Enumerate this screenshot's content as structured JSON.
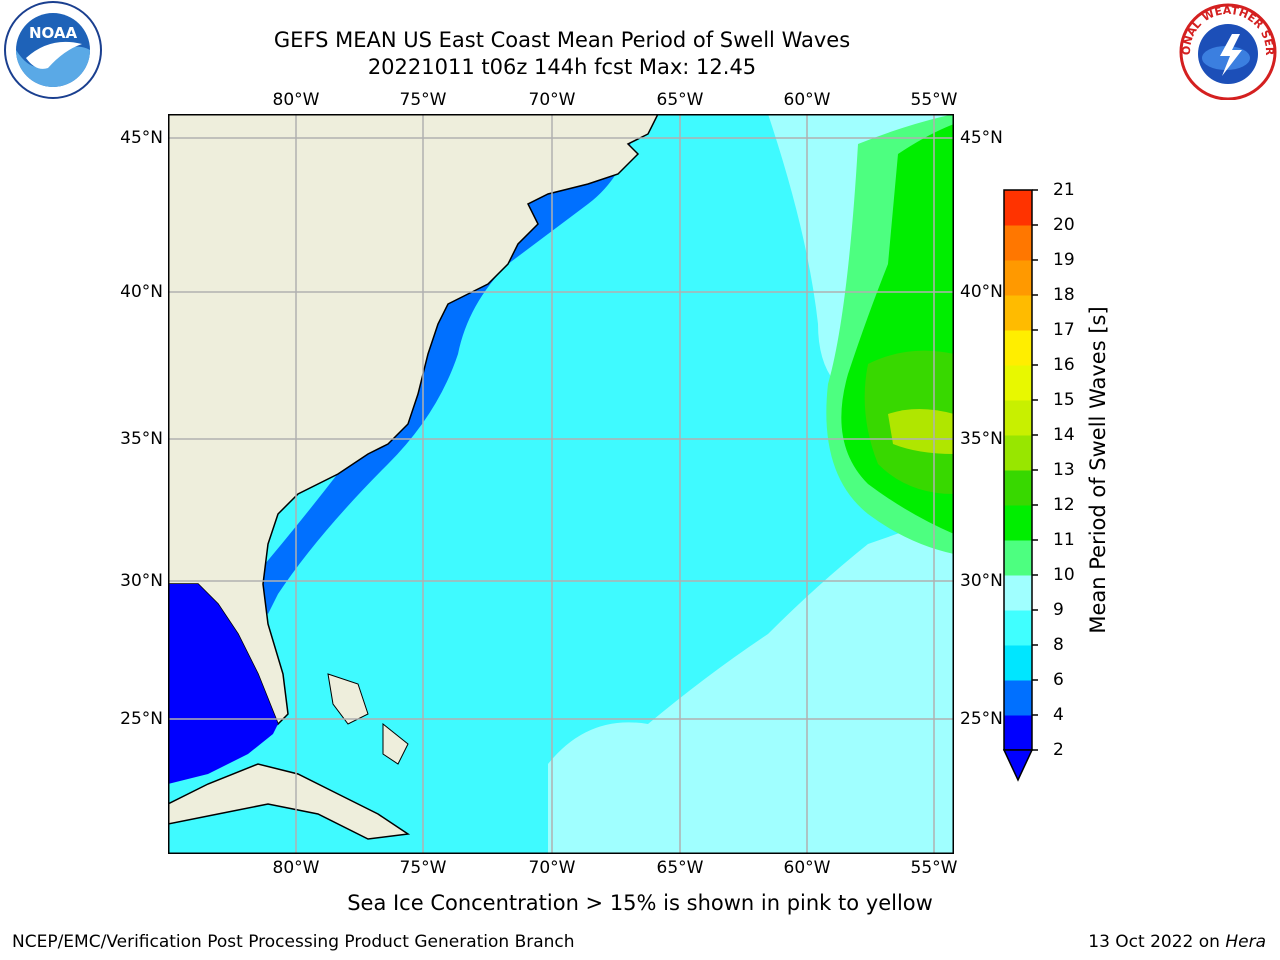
{
  "title": {
    "line1": "GEFS MEAN US East Coast Mean Period of Swell Waves",
    "line2": "20221011 t06z 144h fcst   Max: 12.45"
  },
  "logos": {
    "left": {
      "name": "noaa-logo",
      "text": "NOAA"
    },
    "right": {
      "name": "nws-logo",
      "text": "NATIONAL WEATHER SERVICE"
    }
  },
  "map": {
    "x_ticks": [
      "80°W",
      "75°W",
      "70°W",
      "65°W",
      "60°W",
      "55°W"
    ],
    "y_ticks": [
      "45°N",
      "40°N",
      "35°N",
      "30°N",
      "25°N"
    ],
    "land_color": "#eeeedc",
    "grid_color": "#b0b0b0"
  },
  "colorbar": {
    "title": "Mean Period of Swell Waves [s]",
    "labels": [
      "2",
      "4",
      "6",
      "8",
      "9",
      "10",
      "11",
      "12",
      "13",
      "14",
      "15",
      "16",
      "17",
      "18",
      "19",
      "20",
      "21"
    ],
    "colors": [
      "#0000ff",
      "#0070ff",
      "#00e6ff",
      "#40ffff",
      "#a0ffff",
      "#4dff80",
      "#00ee00",
      "#38d800",
      "#98e600",
      "#c8f000",
      "#e8f800",
      "#ffee00",
      "#ffbb00",
      "#ff9900",
      "#ff7700",
      "#ff3300",
      "#ff0000"
    ]
  },
  "note": "Sea Ice Concentration > 15% is shown in pink to yellow",
  "footer": {
    "left": "NCEP/EMC/Verification Post Processing Product Generation Branch",
    "right_prefix": "13 Oct 2022 on ",
    "right_host": "Hera"
  }
}
